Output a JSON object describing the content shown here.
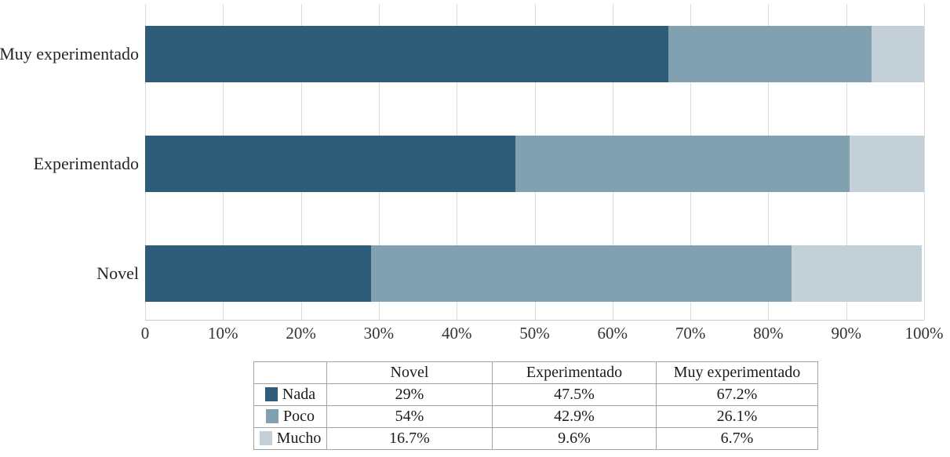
{
  "chart_data": {
    "type": "bar",
    "orientation": "horizontal",
    "stacked": true,
    "title": "",
    "xlabel": "",
    "ylabel": "",
    "xlim": [
      0,
      100
    ],
    "grid": "vertical",
    "categories": [
      "Muy experimentado",
      "Experimentado",
      "Novel"
    ],
    "series": [
      {
        "name": "Nada",
        "color": "#2d5d79",
        "values": [
          67.2,
          47.5,
          29
        ]
      },
      {
        "name": "Poco",
        "color": "#81a1b0",
        "values": [
          26.1,
          42.9,
          54
        ]
      },
      {
        "name": "Mucho",
        "color": "#c3d0d8",
        "values": [
          6.7,
          9.6,
          16.7
        ]
      }
    ],
    "x_axis_ticks": [
      "0",
      "10%",
      "20%",
      "30%",
      "40%",
      "50%",
      "60%",
      "70%",
      "80%",
      "90%",
      "100%"
    ],
    "legend_position": "table-below",
    "colors": {
      "gridline": "#dcdcdc",
      "axis_line": "#c9c9c9",
      "text": "#262626",
      "table_border": "#a3a3a3"
    }
  },
  "table": {
    "header": [
      "",
      "Novel",
      "Experimentado",
      "Muy experimentado"
    ],
    "rows": [
      {
        "label": "Nada",
        "swatch_color": "#2d5d79",
        "values": [
          "29%",
          "47.5%",
          "67.2%"
        ]
      },
      {
        "label": "Poco",
        "swatch_color": "#81a1b0",
        "values": [
          "54%",
          "42.9%",
          "26.1%"
        ]
      },
      {
        "label": "Mucho",
        "swatch_color": "#c3d0d8",
        "values": [
          "16.7%",
          "9.6%",
          "6.7%"
        ]
      }
    ]
  }
}
